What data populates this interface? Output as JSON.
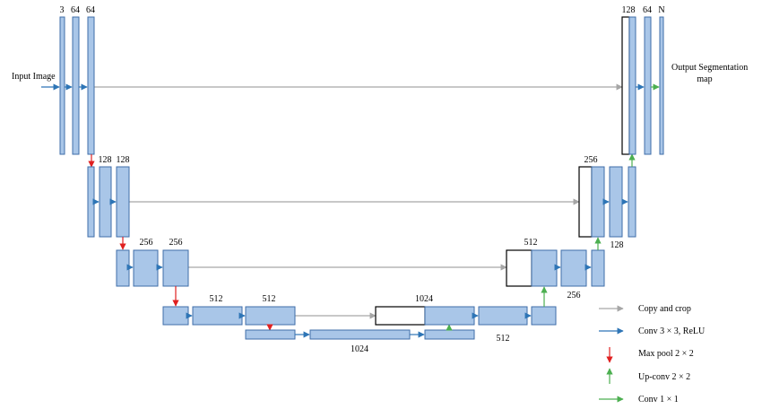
{
  "labels": {
    "input": "Input Image",
    "output_line1": "Output Segmentation",
    "output_line2": "map"
  },
  "channels": {
    "enc1": [
      "3",
      "64",
      "64"
    ],
    "enc2": [
      "128",
      "128"
    ],
    "enc3": [
      "256",
      "256"
    ],
    "enc4": [
      "512",
      "512"
    ],
    "bottleneck": [
      "1024",
      "1024"
    ],
    "dec4": [
      "1024",
      "512"
    ],
    "dec3": [
      "512",
      "256"
    ],
    "dec2": [
      "256",
      "128"
    ],
    "dec1": [
      "128",
      "64",
      "N"
    ]
  },
  "legend": [
    {
      "label": "Copy and crop",
      "color": "#a6a6a6"
    },
    {
      "label": "Conv 3 × 3, ReLU",
      "color": "#2e75b6"
    },
    {
      "label": "Max pool 2 × 2",
      "color": "#e02020"
    },
    {
      "label": "Up-conv 2 × 2",
      "color": "#4caf50"
    },
    {
      "label": "Conv 1 × 1",
      "color": "#4caf50"
    }
  ],
  "colors": {
    "block_fill": "#a9c6e8",
    "block_stroke": "#3f6ea8",
    "copy_crop": "#a6a6a6",
    "conv": "#2e75b6",
    "max_pool": "#e02020",
    "up_conv": "#4caf50"
  }
}
